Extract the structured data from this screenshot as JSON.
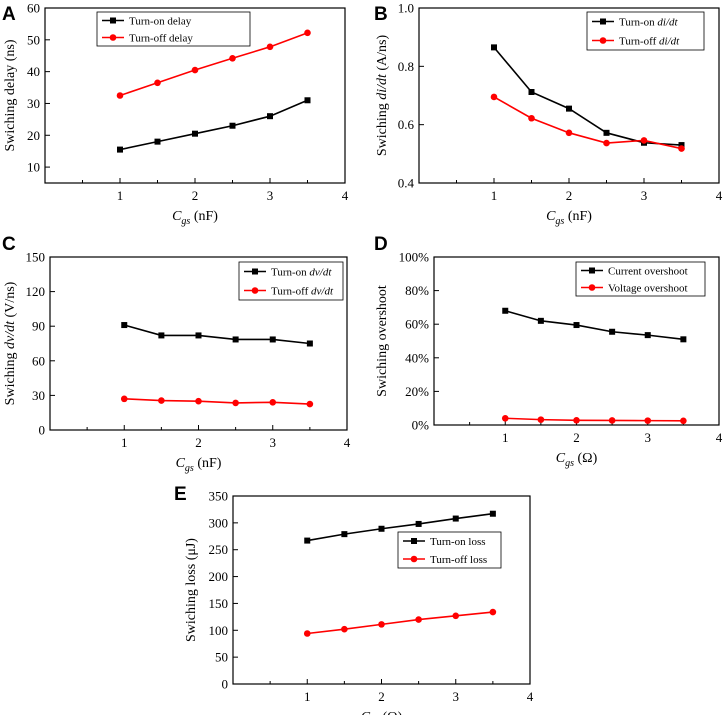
{
  "colors": {
    "on": "#000000",
    "off": "#ff0000"
  },
  "chart_data": [
    {
      "type": "line",
      "panel": "A",
      "title": "",
      "xlabel": {
        "main": "C",
        "sub": "gs",
        "unit": " (nF)"
      },
      "ylabel": {
        "parts": [
          {
            "text": "Swiching delay (ns)",
            "italic": false
          }
        ]
      },
      "xlim": [
        0,
        4
      ],
      "ylim": [
        5,
        60
      ],
      "xticks": [
        1,
        2,
        3,
        4
      ],
      "xtick_labels": [
        "1",
        "2",
        "3",
        "4"
      ],
      "yticks": [
        10,
        20,
        30,
        40,
        50,
        60
      ],
      "ytick_labels": [
        "10",
        "20",
        "30",
        "40",
        "50",
        "60"
      ],
      "legend_position": "top-left",
      "x": [
        1,
        1.5,
        2,
        2.5,
        3,
        3.5
      ],
      "series": [
        {
          "name": "Turn-on delay",
          "name_parts": [
            {
              "text": "Turn-on delay",
              "italic": false
            }
          ],
          "color": "#000000",
          "marker": "square",
          "values": [
            15.5,
            18,
            20.5,
            23,
            26,
            31
          ]
        },
        {
          "name": "Turn-off delay",
          "name_parts": [
            {
              "text": "Turn-off delay",
              "italic": false
            }
          ],
          "color": "#ff0000",
          "marker": "circle",
          "values": [
            32.5,
            36.5,
            40.5,
            44.2,
            47.8,
            52.2
          ]
        }
      ]
    },
    {
      "type": "line",
      "panel": "B",
      "title": "",
      "xlabel": {
        "main": "C",
        "sub": "gs",
        "unit": " (nF)"
      },
      "ylabel": {
        "parts": [
          {
            "text": "Swiching ",
            "italic": false
          },
          {
            "text": "di/dt",
            "italic": true
          },
          {
            "text": " (A/ns)",
            "italic": false
          }
        ]
      },
      "xlim": [
        0,
        4
      ],
      "ylim": [
        0.4,
        1.0
      ],
      "xticks": [
        1,
        2,
        3,
        4
      ],
      "xtick_labels": [
        "1",
        "2",
        "3",
        "4"
      ],
      "yticks": [
        0.4,
        0.6,
        0.8,
        1.0
      ],
      "ytick_labels": [
        "0.4",
        "0.6",
        "0.8",
        "1.0"
      ],
      "legend_position": "top-right",
      "x": [
        1,
        1.5,
        2,
        2.5,
        3,
        3.5
      ],
      "series": [
        {
          "name": "Turn-on di/dt",
          "name_parts": [
            {
              "text": "Turn-on ",
              "italic": false
            },
            {
              "text": "di/dt",
              "italic": true
            }
          ],
          "color": "#000000",
          "marker": "square",
          "values": [
            0.865,
            0.712,
            0.655,
            0.572,
            0.538,
            0.53
          ]
        },
        {
          "name": "Turn-off di/dt",
          "name_parts": [
            {
              "text": "Turn-off ",
              "italic": false
            },
            {
              "text": "di/dt",
              "italic": true
            }
          ],
          "color": "#ff0000",
          "marker": "circle",
          "values": [
            0.695,
            0.622,
            0.572,
            0.537,
            0.546,
            0.518
          ]
        }
      ]
    },
    {
      "type": "line",
      "panel": "C",
      "title": "",
      "xlabel": {
        "main": "C",
        "sub": "gs",
        "unit": " (nF)"
      },
      "ylabel": {
        "parts": [
          {
            "text": "Swiching ",
            "italic": false
          },
          {
            "text": "dv/dt",
            "italic": true
          },
          {
            "text": " (V/ns)",
            "italic": false
          }
        ]
      },
      "xlim": [
        0,
        4
      ],
      "ylim": [
        0,
        150
      ],
      "xticks": [
        1,
        2,
        3,
        4
      ],
      "xtick_labels": [
        "1",
        "2",
        "3",
        "4"
      ],
      "yticks": [
        0,
        30,
        60,
        90,
        120,
        150
      ],
      "ytick_labels": [
        "0",
        "30",
        "60",
        "90",
        "120",
        "150"
      ],
      "legend_position": "top-right",
      "x": [
        1,
        1.5,
        2,
        2.5,
        3,
        3.5
      ],
      "series": [
        {
          "name": "Turn-on dv/dt",
          "name_parts": [
            {
              "text": "Turn-on ",
              "italic": false
            },
            {
              "text": "dv/dt",
              "italic": true
            }
          ],
          "color": "#000000",
          "marker": "square",
          "values": [
            91,
            82,
            82,
            78.5,
            78.5,
            75
          ]
        },
        {
          "name": "Turn-off dv/dt",
          "name_parts": [
            {
              "text": "Turn-off ",
              "italic": false
            },
            {
              "text": "dv/dt",
              "italic": true
            }
          ],
          "color": "#ff0000",
          "marker": "circle",
          "values": [
            27,
            25.5,
            25,
            23.5,
            24,
            22.5
          ]
        }
      ]
    },
    {
      "type": "line",
      "panel": "D",
      "title": "",
      "xlabel": {
        "main": "C",
        "sub": "gs",
        "unit": " (Ω)"
      },
      "ylabel": {
        "parts": [
          {
            "text": "Swiching overshoot",
            "italic": false
          }
        ]
      },
      "xlim": [
        0,
        4
      ],
      "ylim": [
        0,
        100
      ],
      "xticks": [
        1,
        2,
        3,
        4
      ],
      "xtick_labels": [
        "1",
        "2",
        "3",
        "4"
      ],
      "yticks": [
        0,
        20,
        40,
        60,
        80,
        100
      ],
      "ytick_labels": [
        "0%",
        "20%",
        "40%",
        "60%",
        "80%",
        "100%"
      ],
      "legend_position": "top-right",
      "x": [
        1,
        1.5,
        2,
        2.5,
        3,
        3.5
      ],
      "series": [
        {
          "name": "Current overshoot",
          "name_parts": [
            {
              "text": "Current overshoot",
              "italic": false
            }
          ],
          "color": "#000000",
          "marker": "square",
          "values": [
            68,
            62,
            59.5,
            55.5,
            53.5,
            51
          ]
        },
        {
          "name": "Voltage overshoot",
          "name_parts": [
            {
              "text": "Voltage overshoot",
              "italic": false
            }
          ],
          "color": "#ff0000",
          "marker": "circle",
          "values": [
            4,
            3.2,
            2.8,
            2.7,
            2.6,
            2.5
          ]
        }
      ]
    },
    {
      "type": "line",
      "panel": "E",
      "title": "",
      "xlabel": {
        "main": "C",
        "sub": "gs",
        "unit": " (Ω)"
      },
      "ylabel": {
        "parts": [
          {
            "text": "Swiching loss (μJ)",
            "italic": false
          }
        ]
      },
      "xlim": [
        0,
        4
      ],
      "ylim": [
        0,
        350
      ],
      "xticks": [
        1,
        2,
        3,
        4
      ],
      "xtick_labels": [
        "1",
        "2",
        "3",
        "4"
      ],
      "yticks": [
        0,
        50,
        100,
        150,
        200,
        250,
        300,
        350
      ],
      "ytick_labels": [
        "0",
        "50",
        "100",
        "150",
        "200",
        "250",
        "300",
        "350"
      ],
      "legend_position": "middle-right",
      "x": [
        1,
        1.5,
        2,
        2.5,
        3,
        3.5
      ],
      "series": [
        {
          "name": "Turn-on loss",
          "name_parts": [
            {
              "text": "Turn-on loss",
              "italic": false
            }
          ],
          "color": "#000000",
          "marker": "square",
          "values": [
            267,
            279,
            289,
            298,
            308,
            317
          ]
        },
        {
          "name": "Turn-off loss",
          "name_parts": [
            {
              "text": "Turn-off loss",
              "italic": false
            }
          ],
          "color": "#ff0000",
          "marker": "circle",
          "values": [
            94,
            102,
            111,
            120,
            127,
            134
          ]
        }
      ]
    }
  ]
}
